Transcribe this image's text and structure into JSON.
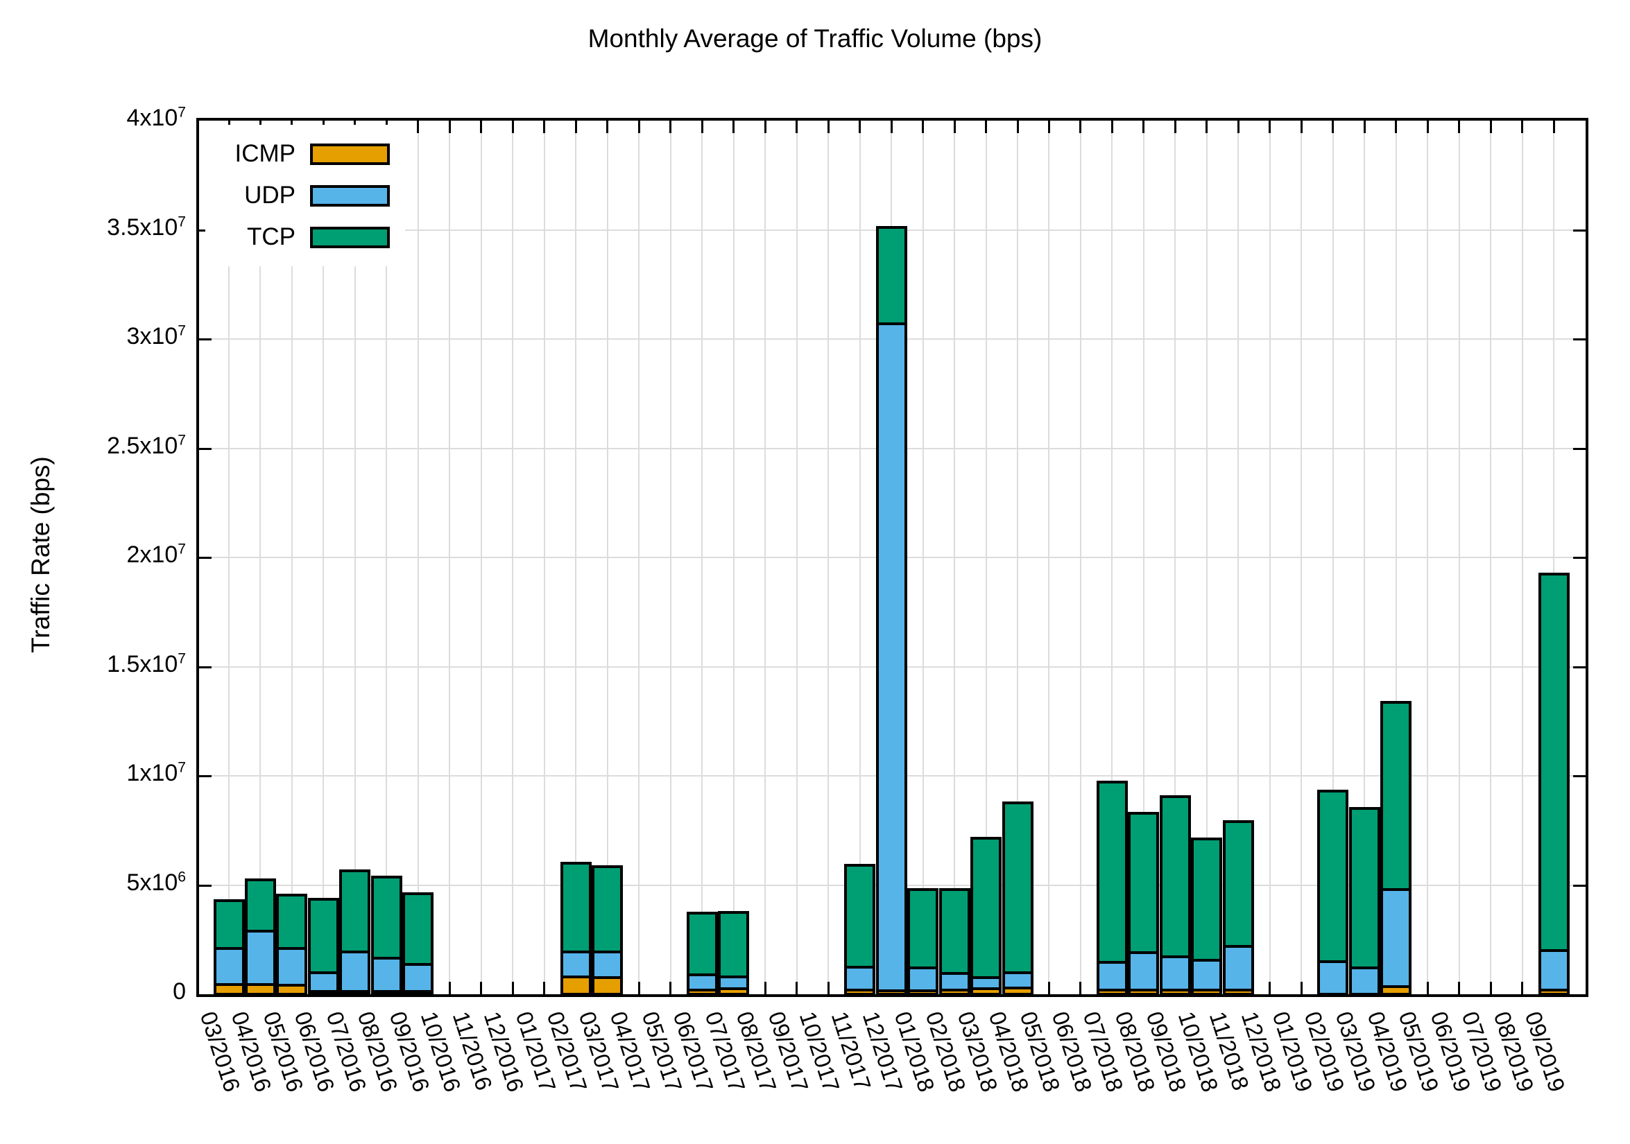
{
  "chart_data": {
    "type": "bar",
    "stacked": true,
    "title": "Monthly Average of Traffic Volume (bps)",
    "ylabel": "Traffic Rate (bps)",
    "xlabel": "",
    "ylim": [
      0,
      40000000
    ],
    "grid": true,
    "legend_position": "top-left",
    "ytick_values": [
      0,
      5000000,
      10000000,
      15000000,
      20000000,
      25000000,
      30000000,
      35000000,
      40000000
    ],
    "ytick_labels": [
      "0",
      "5x10^6",
      "1x10^7",
      "1.5x10^7",
      "2x10^7",
      "2.5x10^7",
      "3x10^7",
      "3.5x10^7",
      "4x10^7"
    ],
    "categories": [
      "03/2016",
      "04/2016",
      "05/2016",
      "06/2016",
      "07/2016",
      "08/2016",
      "09/2016",
      "10/2016",
      "11/2016",
      "12/2016",
      "01/2017",
      "02/2017",
      "03/2017",
      "04/2017",
      "05/2017",
      "06/2017",
      "07/2017",
      "08/2017",
      "09/2017",
      "10/2017",
      "11/2017",
      "12/2017",
      "01/2018",
      "02/2018",
      "03/2018",
      "04/2018",
      "05/2018",
      "06/2018",
      "07/2018",
      "08/2018",
      "09/2018",
      "10/2018",
      "11/2018",
      "12/2018",
      "01/2019",
      "02/2019",
      "03/2019",
      "04/2019",
      "05/2019",
      "06/2019",
      "07/2019",
      "08/2019",
      "09/2019"
    ],
    "series": [
      {
        "name": "ICMP",
        "color": "#E69F00",
        "values": [
          450000,
          450000,
          400000,
          100000,
          100000,
          100000,
          100000,
          0,
          0,
          0,
          0,
          800000,
          750000,
          0,
          0,
          200000,
          250000,
          0,
          0,
          0,
          200000,
          150000,
          150000,
          200000,
          250000,
          300000,
          0,
          0,
          200000,
          200000,
          200000,
          200000,
          200000,
          0,
          0,
          0,
          0,
          350000,
          0,
          0,
          0,
          0,
          200000
        ]
      },
      {
        "name": "UDP",
        "color": "#56B4E9",
        "values": [
          1650000,
          2450000,
          1700000,
          900000,
          1850000,
          1550000,
          1250000,
          0,
          0,
          0,
          0,
          1150000,
          1200000,
          0,
          0,
          700000,
          550000,
          0,
          0,
          0,
          1050000,
          30550000,
          1050000,
          750000,
          500000,
          700000,
          0,
          0,
          1250000,
          1700000,
          1500000,
          1350000,
          2000000,
          0,
          0,
          1500000,
          1200000,
          4450000,
          0,
          0,
          0,
          0,
          1800000
        ]
      },
      {
        "name": "TCP",
        "color": "#009E73",
        "values": [
          2200000,
          2350000,
          2450000,
          3350000,
          3700000,
          3700000,
          3250000,
          0,
          0,
          0,
          0,
          4050000,
          3900000,
          0,
          0,
          2800000,
          2950000,
          0,
          0,
          0,
          4650000,
          4400000,
          3600000,
          3850000,
          6400000,
          7750000,
          0,
          0,
          8250000,
          6400000,
          7350000,
          5550000,
          5700000,
          0,
          0,
          7800000,
          7300000,
          8550000,
          0,
          0,
          0,
          0,
          17250000
        ]
      }
    ]
  }
}
